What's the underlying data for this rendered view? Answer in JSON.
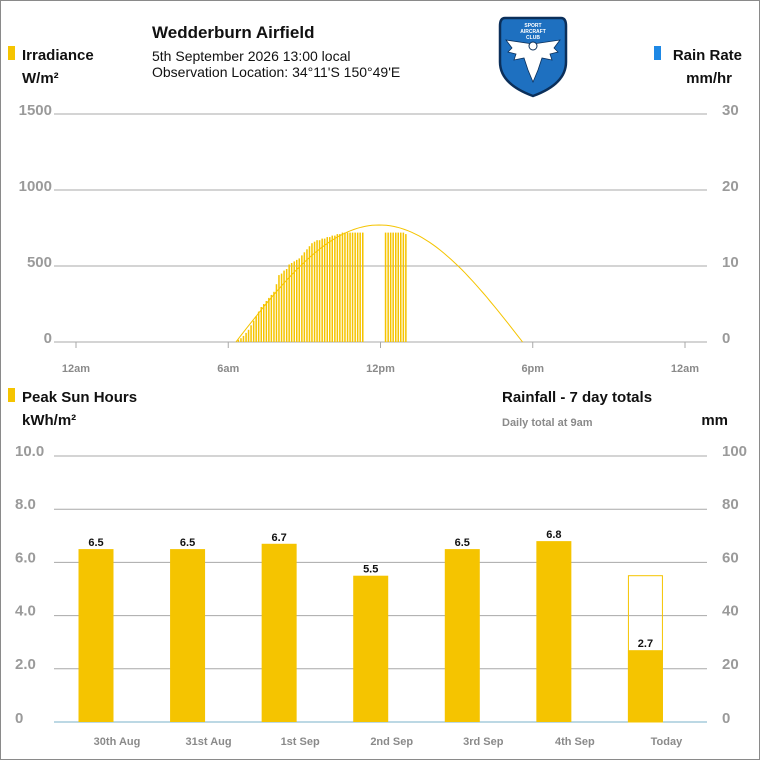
{
  "header": {
    "title": "Wedderburn Airfield",
    "datetime": "5th September 2026  13:00 local",
    "location": "Observation Location: 34°11'S 150°49'E",
    "logo_icon": "sport-aircraft-club-eagle-logo"
  },
  "colors": {
    "irradiance": "#f5c400",
    "rain": "#1e88e5",
    "grid": "#a8a8a8",
    "axis_text": "#9a9a9a",
    "logo_blue": "#1e70c0"
  },
  "chart_data": [
    {
      "type": "bar",
      "title": "",
      "left_axis": {
        "title": "Irradiance",
        "unit": "W/m²",
        "ylim": [
          0,
          1500
        ],
        "ticks": [
          "0",
          "500",
          "1000",
          "1500"
        ]
      },
      "right_axis": {
        "title": "Rain Rate",
        "unit": "mm/hr",
        "ylim": [
          0,
          30
        ],
        "ticks": [
          "0",
          "10",
          "20",
          "30"
        ]
      },
      "x_ticks": [
        "12am",
        "6am",
        "12pm",
        "6pm",
        "12am"
      ],
      "x_range_hours": [
        0,
        24
      ],
      "clear_sky_curve": {
        "sunrise": 6.3,
        "sunset": 17.6,
        "peak": 770
      },
      "series": [
        {
          "name": "Irradiance",
          "hours": [
            6.4,
            6.5,
            6.6,
            6.7,
            6.8,
            6.9,
            7.0,
            7.1,
            7.2,
            7.3,
            7.4,
            7.5,
            7.6,
            7.7,
            7.8,
            7.9,
            8.0,
            8.1,
            8.2,
            8.3,
            8.4,
            8.5,
            8.6,
            8.7,
            8.8,
            8.9,
            9.0,
            9.1,
            9.2,
            9.3,
            9.4,
            9.5,
            9.6,
            9.7,
            9.8,
            9.9,
            10.0,
            10.1,
            10.2,
            10.3,
            10.4,
            10.5,
            10.6,
            10.7,
            10.8,
            10.9,
            11.0,
            11.1,
            11.2,
            11.3,
            12.2,
            12.3,
            12.4,
            12.5,
            12.6,
            12.7,
            12.8,
            12.9,
            13.0
          ],
          "values": [
            15,
            25,
            40,
            60,
            80,
            110,
            140,
            170,
            200,
            230,
            250,
            270,
            290,
            310,
            330,
            380,
            440,
            450,
            470,
            480,
            510,
            520,
            530,
            540,
            550,
            570,
            590,
            610,
            630,
            650,
            660,
            670,
            670,
            680,
            680,
            690,
            690,
            700,
            700,
            710,
            710,
            720,
            720,
            720,
            720,
            720,
            720,
            720,
            720,
            720,
            720,
            720,
            720,
            720,
            720,
            720,
            720,
            720,
            710
          ]
        }
      ]
    },
    {
      "type": "bar",
      "title": "",
      "left_axis": {
        "title": "Peak Sun Hours",
        "unit": "kWh/m²",
        "ylim": [
          0,
          10
        ],
        "ticks": [
          "0",
          "2.0",
          "4.0",
          "6.0",
          "8.0",
          "10.0"
        ]
      },
      "right_axis": {
        "title": "Rainfall - 7 day totals",
        "note": "Daily total at 9am",
        "unit": "mm",
        "ylim": [
          0,
          100
        ],
        "ticks": [
          "0",
          "20",
          "40",
          "60",
          "80",
          "100"
        ]
      },
      "categories": [
        "30th Aug",
        "31st Aug",
        "1st Sep",
        "2nd Sep",
        "3rd Sep",
        "4th Sep",
        "Today"
      ],
      "series": [
        {
          "name": "Peak Sun Hours",
          "values": [
            6.5,
            6.5,
            6.7,
            5.5,
            6.5,
            6.8,
            2.7
          ],
          "labels": [
            "6.5",
            "6.5",
            "6.7",
            "5.5",
            "6.5",
            "6.8",
            "2.7"
          ]
        },
        {
          "name": "Rainfall",
          "values": [
            0,
            0,
            0,
            0,
            0,
            0,
            0
          ]
        }
      ],
      "today_forecast": 5.5
    }
  ]
}
